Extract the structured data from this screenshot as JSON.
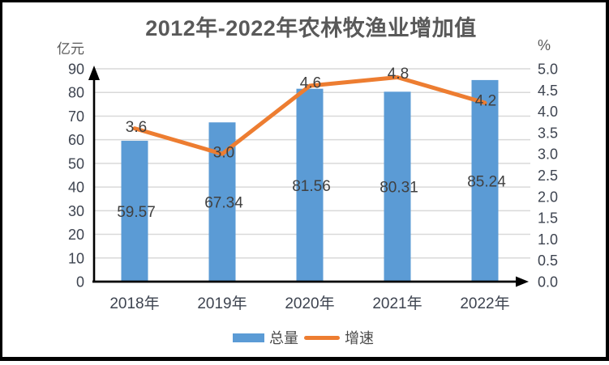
{
  "title": "2012年-2022年农林牧渔业增加值",
  "left_axis_unit": "亿元",
  "right_axis_unit": "%",
  "legend": {
    "bar_label": "总量",
    "line_label": "增速"
  },
  "colors": {
    "bar": "#5B9BD5",
    "line": "#ED7D31",
    "grid": "#D9D9D9",
    "axis": "#000000",
    "title_text": "#595959",
    "tick_text": "#3e4450",
    "value_text": "#404040"
  },
  "chart_data": {
    "type": "combo",
    "title": "2012年-2022年农林牧渔业增加值",
    "categories": [
      "2018年",
      "2019年",
      "2020年",
      "2021年",
      "2022年"
    ],
    "series": [
      {
        "name": "总量",
        "type": "bar",
        "axis": "left",
        "unit": "亿元",
        "color": "#5B9BD5",
        "values": [
          59.57,
          67.34,
          81.56,
          80.31,
          85.24
        ],
        "labels": [
          "59.57",
          "67.34",
          "81.56",
          "80.31",
          "85.24"
        ]
      },
      {
        "name": "增速",
        "type": "line",
        "axis": "right",
        "unit": "%",
        "color": "#ED7D31",
        "values": [
          3.6,
          3.0,
          4.6,
          4.8,
          4.2
        ],
        "labels": [
          "3.6",
          "3.0",
          "4.6",
          "4.8",
          "4.2"
        ]
      }
    ],
    "left_axis": {
      "label": "亿元",
      "min": 0,
      "max": 90,
      "step": 10,
      "ticks": [
        "0",
        "10",
        "20",
        "30",
        "40",
        "50",
        "60",
        "70",
        "80",
        "90"
      ]
    },
    "right_axis": {
      "label": "%",
      "min": 0.0,
      "max": 5.0,
      "step": 0.5,
      "ticks": [
        "0.0",
        "0.5",
        "1.0",
        "1.5",
        "2.0",
        "2.5",
        "3.0",
        "3.5",
        "4.0",
        "4.5",
        "5.0"
      ]
    },
    "grid": true,
    "legend_position": "bottom"
  }
}
